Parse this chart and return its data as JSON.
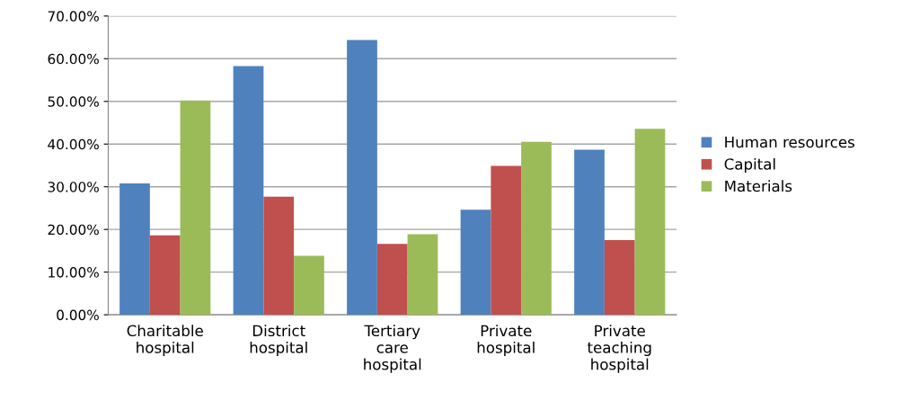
{
  "chart_data": {
    "type": "bar",
    "categories": [
      "Charitable\nhospital",
      "District\nhospital",
      "Tertiary\ncare\nhospital",
      "Private\nhospital",
      "Private\nteaching\nhospital"
    ],
    "series": [
      {
        "name": "Human resources",
        "color": "#4f81bd",
        "values": [
          30.8,
          58.3,
          64.4,
          24.6,
          38.7
        ]
      },
      {
        "name": "Capital",
        "color": "#c0504d",
        "values": [
          18.6,
          27.7,
          16.6,
          34.9,
          17.5
        ]
      },
      {
        "name": "Materials",
        "color": "#9bbb59",
        "values": [
          50.2,
          13.8,
          18.9,
          40.5,
          43.6
        ]
      }
    ],
    "ylim": [
      0,
      70
    ],
    "yticks": [
      {
        "value": 0,
        "label": "0.00%"
      },
      {
        "value": 10,
        "label": "10.00%"
      },
      {
        "value": 20,
        "label": "20.00%"
      },
      {
        "value": 30,
        "label": "30.00%"
      },
      {
        "value": 40,
        "label": "40.00%"
      },
      {
        "value": 50,
        "label": "50.00%"
      },
      {
        "value": 60,
        "label": "60.00%"
      },
      {
        "value": 70,
        "label": "70.00%"
      }
    ],
    "grid": "y",
    "legend": "right"
  }
}
